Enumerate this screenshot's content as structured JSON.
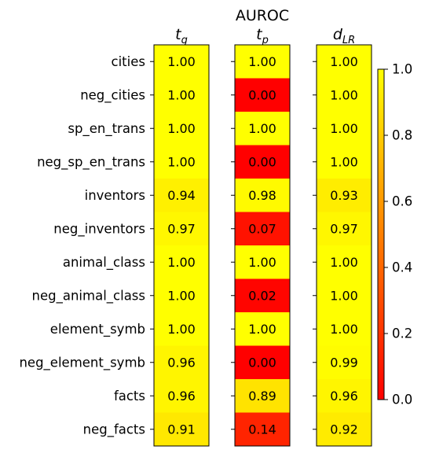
{
  "chart_data": {
    "type": "heatmap",
    "title": "AUROC",
    "columns": [
      {
        "sym": "t",
        "sub": "g"
      },
      {
        "sym": "t",
        "sub": "p"
      },
      {
        "sym": "d",
        "sub": "LR"
      }
    ],
    "rows": [
      "cities",
      "neg_cities",
      "sp_en_trans",
      "neg_sp_en_trans",
      "inventors",
      "neg_inventors",
      "animal_class",
      "neg_animal_class",
      "element_symb",
      "neg_element_symb",
      "facts",
      "neg_facts"
    ],
    "values": [
      [
        1.0,
        1.0,
        1.0,
        1.0,
        0.94,
        0.97,
        1.0,
        1.0,
        1.0,
        0.96,
        0.96,
        0.91
      ],
      [
        1.0,
        0.0,
        1.0,
        0.0,
        0.98,
        0.07,
        1.0,
        0.02,
        1.0,
        0.0,
        0.89,
        0.14
      ],
      [
        1.0,
        1.0,
        1.0,
        1.0,
        0.93,
        0.97,
        1.0,
        1.0,
        1.0,
        0.99,
        0.96,
        0.92
      ]
    ],
    "value_labels": [
      [
        "1.00",
        "1.00",
        "1.00",
        "1.00",
        "0.94",
        "0.97",
        "1.00",
        "1.00",
        "1.00",
        "0.96",
        "0.96",
        "0.91"
      ],
      [
        "1.00",
        "0.00",
        "1.00",
        "0.00",
        "0.98",
        "0.07",
        "1.00",
        "0.02",
        "1.00",
        "0.00",
        "0.89",
        "0.14"
      ],
      [
        "1.00",
        "1.00",
        "1.00",
        "1.00",
        "0.93",
        "0.97",
        "1.00",
        "1.00",
        "1.00",
        "0.99",
        "0.96",
        "0.92"
      ]
    ],
    "colormap": "autumn",
    "vmin": 0.0,
    "vmax": 1.0,
    "colorbar": {
      "ticks": [
        0.0,
        0.2,
        0.4,
        0.6,
        0.8,
        1.0
      ],
      "tick_labels": [
        "0.0",
        "0.2",
        "0.4",
        "0.6",
        "0.8",
        "1.0"
      ]
    },
    "colors": {
      "low": "#ff0000",
      "high": "#ffff00"
    }
  }
}
